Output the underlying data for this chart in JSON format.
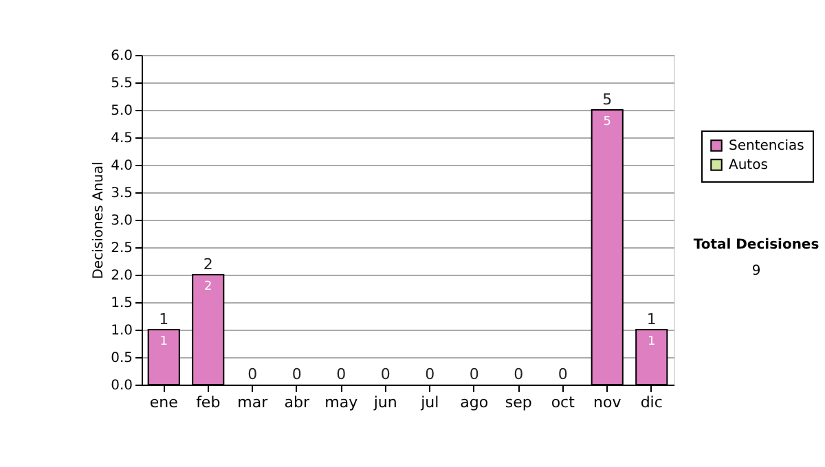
{
  "chart_data": {
    "type": "bar",
    "stacked": true,
    "ylabel": "Decisiones Anual",
    "categories": [
      "ene",
      "feb",
      "mar",
      "abr",
      "may",
      "jun",
      "jul",
      "ago",
      "sep",
      "oct",
      "nov",
      "dic"
    ],
    "series": [
      {
        "name": "Sentencias",
        "color": "#dd7fc0",
        "values": [
          1,
          2,
          0,
          0,
          0,
          0,
          0,
          0,
          0,
          0,
          5,
          1
        ],
        "value_labels": [
          "1",
          "2",
          null,
          null,
          null,
          null,
          null,
          null,
          null,
          null,
          "5",
          "1"
        ]
      },
      {
        "name": "Autos",
        "color": "#cfe6a0",
        "values": [
          0,
          0,
          0,
          0,
          0,
          0,
          0,
          0,
          0,
          0,
          0,
          0
        ]
      }
    ],
    "totals": [
      "1",
      "2",
      "0",
      "0",
      "0",
      "0",
      "0",
      "0",
      "0",
      "0",
      "5",
      "1"
    ],
    "ylim": [
      0,
      6
    ],
    "yticks": [
      {
        "value": 0,
        "label": "0.0"
      },
      {
        "value": 0.5,
        "label": "0.5"
      },
      {
        "value": 1,
        "label": "1.0"
      },
      {
        "value": 1.5,
        "label": "1.5"
      },
      {
        "value": 2,
        "label": "2.0"
      },
      {
        "value": 2.5,
        "label": "2.5"
      },
      {
        "value": 3,
        "label": "3.0"
      },
      {
        "value": 3.5,
        "label": "3.5"
      },
      {
        "value": 4,
        "label": "4.0"
      },
      {
        "value": 4.5,
        "label": "4.5"
      },
      {
        "value": 5,
        "label": "5.0"
      },
      {
        "value": 5.5,
        "label": "5.5"
      },
      {
        "value": 6,
        "label": "6.0"
      }
    ],
    "grid": "y",
    "legend": "right",
    "annotations": [
      "Total Decisiones",
      "9"
    ]
  }
}
